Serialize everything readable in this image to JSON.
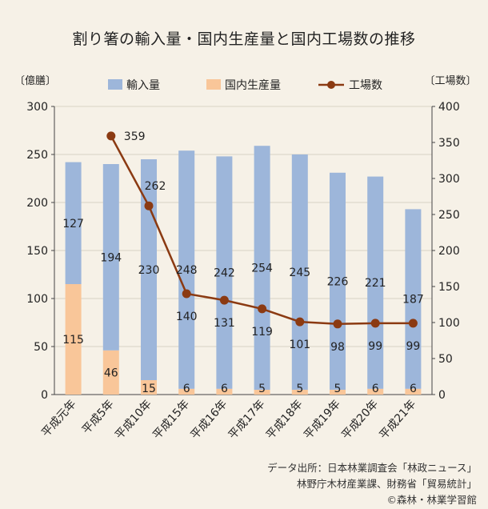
{
  "title": "割り箸の輸入量・国内生産量と国内工場数の推移",
  "colors": {
    "import": "#9db6da",
    "domestic": "#f9c699",
    "factories": "#8b3a12",
    "grid": "#d8d2c6",
    "axis": "#444444"
  },
  "chart_data": {
    "type": "bar",
    "stacked": true,
    "categories": [
      "平成元年",
      "平成5年",
      "平成10年",
      "平成15年",
      "平成16年",
      "平成17年",
      "平成18年",
      "平成19年",
      "平成20年",
      "平成21年"
    ],
    "series": [
      {
        "name": "国内生産量",
        "color": "#f9c699",
        "values": [
          115,
          46,
          15,
          6,
          6,
          5,
          5,
          5,
          6,
          6
        ]
      },
      {
        "name": "輸入量",
        "color": "#9db6da",
        "values": [
          127,
          194,
          230,
          248,
          242,
          254,
          245,
          226,
          221,
          187
        ]
      }
    ],
    "line_series": {
      "name": "工場数",
      "color": "#8b3a12",
      "axis": "right",
      "values": [
        null,
        359,
        262,
        140,
        131,
        119,
        101,
        98,
        99,
        99
      ]
    },
    "ylabel_left": "〔億膳〕",
    "ylabel_right": "〔工場数〕",
    "ylim_left": [
      0,
      300
    ],
    "yticks_left": [
      0,
      50,
      100,
      150,
      200,
      250,
      300
    ],
    "ylim_right": [
      0,
      400
    ],
    "yticks_right": [
      0,
      50,
      100,
      150,
      200,
      250,
      300,
      350,
      400
    ],
    "grid": true,
    "legend": [
      "輸入量",
      "国内生産量",
      "工場数"
    ],
    "legend_position": "top"
  },
  "source": {
    "line1": "データ出所：日本林業調査会「林政ニュース」",
    "line2": "林野庁木材産業課、財務省「貿易統計」",
    "line3": "©森林・林業学習館"
  }
}
